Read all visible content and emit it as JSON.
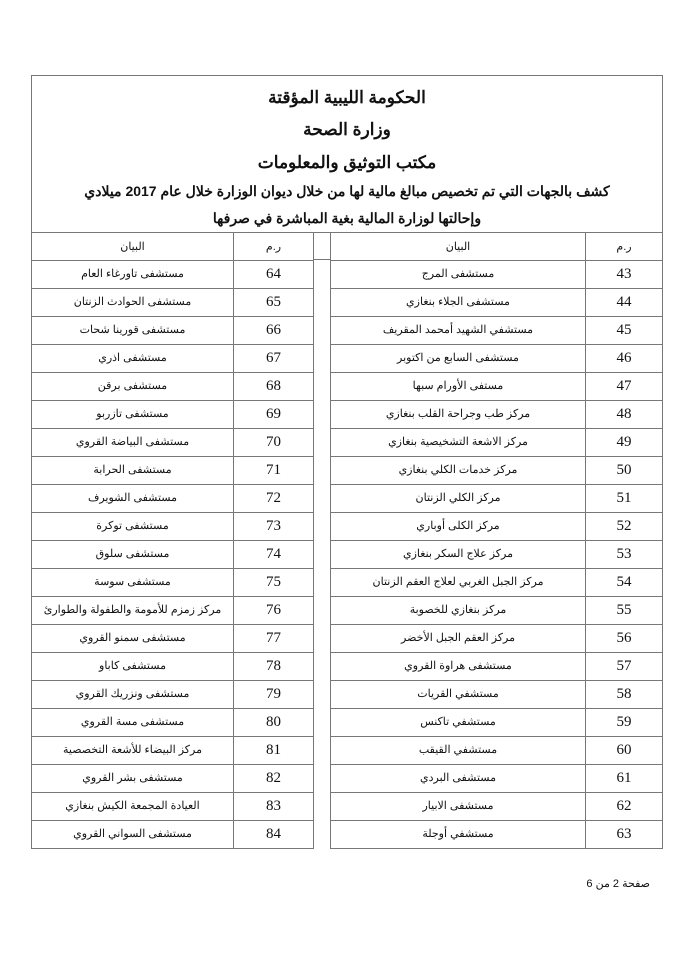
{
  "header": {
    "line1": "الحكومة الليبية المؤقتة",
    "line2": "وزارة الصحة",
    "line3": "مكتب التوثيق والمعلومات",
    "line4": "كشف بالجهات التي تم تخصيص مبالغ مالية لها من خلال ديوان الوزارة خلال عام 2017 ميلادي",
    "line5": "وإحالتها لوزارة المالية بغية المباشرة في صرفها"
  },
  "columns": {
    "num": "ر.م",
    "name": "البيان"
  },
  "right_table": [
    {
      "num": "43",
      "name": "مستشفى المرج"
    },
    {
      "num": "44",
      "name": "مستشفى الجلاء بنغازي"
    },
    {
      "num": "45",
      "name": "مستشفي الشهيد أمحمد المقريف"
    },
    {
      "num": "46",
      "name": "مستشفى السابع من اكتوبر"
    },
    {
      "num": "47",
      "name": "مستفى الأورام سبها"
    },
    {
      "num": "48",
      "name": "مركز طب وجراحة القلب بنغازي"
    },
    {
      "num": "49",
      "name": "مركز الاشعة التشخيصية بنغازي"
    },
    {
      "num": "50",
      "name": "مركز خدمات الكلي بنغازي"
    },
    {
      "num": "51",
      "name": "مركز الكلي الزنتان"
    },
    {
      "num": "52",
      "name": "مركز الكلى أوباري"
    },
    {
      "num": "53",
      "name": "مركز علاج السكر بنغازي"
    },
    {
      "num": "54",
      "name": "مركز الجبل الغربي لعلاج العقم الزنتان"
    },
    {
      "num": "55",
      "name": "مركز بنغازي للخصوبة"
    },
    {
      "num": "56",
      "name": "مركز العقم الجبل الأخضر"
    },
    {
      "num": "57",
      "name": "مستشفى هراوة القروي"
    },
    {
      "num": "58",
      "name": "مستشفي القريات"
    },
    {
      "num": "59",
      "name": "مستشفي تاكنس"
    },
    {
      "num": "60",
      "name": "مستشفي القيقب"
    },
    {
      "num": "61",
      "name": "مستشفى البردي"
    },
    {
      "num": "62",
      "name": "مستشفى الابيار"
    },
    {
      "num": "63",
      "name": "مستشفي أوجلة"
    }
  ],
  "left_table": [
    {
      "num": "64",
      "name": "مستشفى تاورغاء العام"
    },
    {
      "num": "65",
      "name": "مستشفى الحوادث الزنتان"
    },
    {
      "num": "66",
      "name": "مستشفى قورينا شحات"
    },
    {
      "num": "67",
      "name": "مستشفى اذري"
    },
    {
      "num": "68",
      "name": "مستشفى برقن"
    },
    {
      "num": "69",
      "name": "مستشفى تازربو"
    },
    {
      "num": "70",
      "name": "مستشفى البياضة القروي"
    },
    {
      "num": "71",
      "name": "مستشفى الحرابة"
    },
    {
      "num": "72",
      "name": "مستشفى الشويرف"
    },
    {
      "num": "73",
      "name": "مستشفى توكرة"
    },
    {
      "num": "74",
      "name": "مستشفى سلوق"
    },
    {
      "num": "75",
      "name": "مستشفى سوسة"
    },
    {
      "num": "76",
      "name": "مركز زمزم للأمومة والطفولة والطوارئ"
    },
    {
      "num": "77",
      "name": "مستشفى سمنو القروي"
    },
    {
      "num": "78",
      "name": "مستشفى كاباو"
    },
    {
      "num": "79",
      "name": "مستشفى ونزريك القروي"
    },
    {
      "num": "80",
      "name": "مستشفى مسة القروي"
    },
    {
      "num": "81",
      "name": "مركز البيضاء للأشعة التخصصية"
    },
    {
      "num": "82",
      "name": "مستشفى بشر القروي"
    },
    {
      "num": "83",
      "name": "العيادة المجمعة الكيش بنغازي"
    },
    {
      "num": "84",
      "name": "مستشفى السواني القروي"
    }
  ],
  "footer": {
    "page": "صفحة 2 من 6"
  }
}
